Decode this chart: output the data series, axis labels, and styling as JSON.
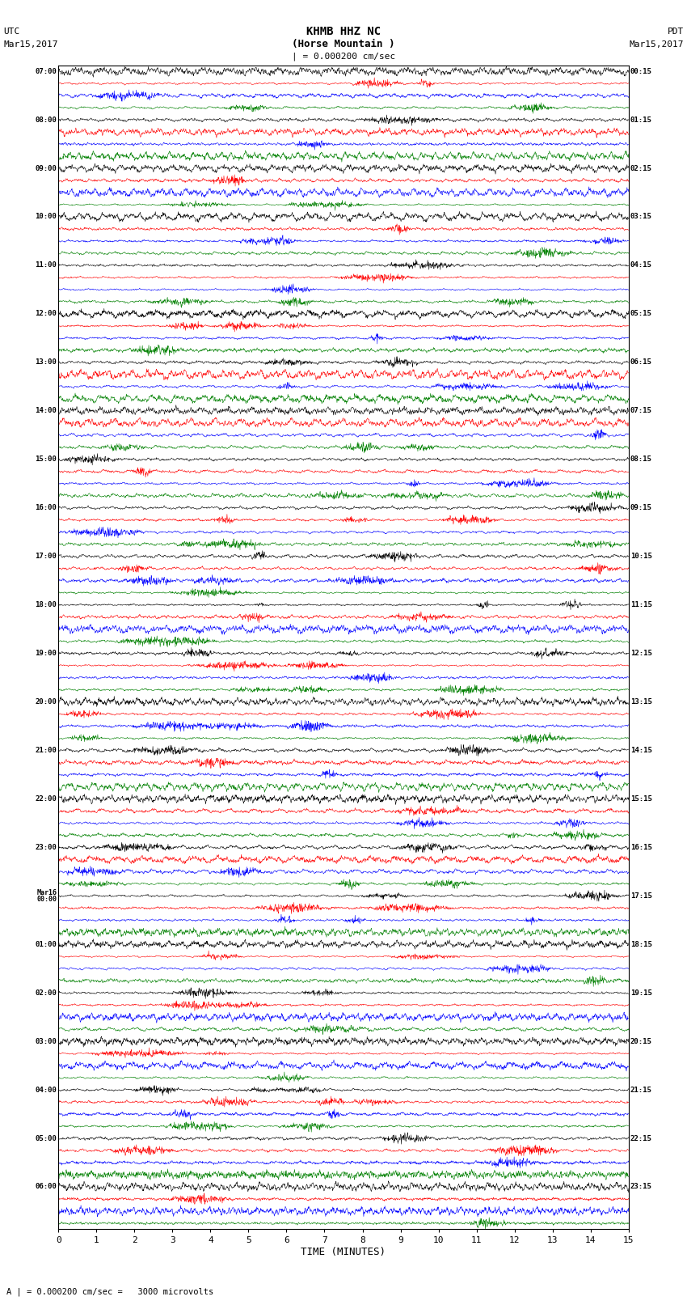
{
  "title_line1": "KHMB HHZ NC",
  "title_line2": "(Horse Mountain )",
  "scale_label": "| = 0.000200 cm/sec",
  "footer_label": "A | = 0.000200 cm/sec =   3000 microvolts",
  "xlabel": "TIME (MINUTES)",
  "left_times": [
    "07:00",
    "08:00",
    "09:00",
    "10:00",
    "11:00",
    "12:00",
    "13:00",
    "14:00",
    "15:00",
    "16:00",
    "17:00",
    "18:00",
    "19:00",
    "20:00",
    "21:00",
    "22:00",
    "23:00",
    "Mar16",
    "00:00",
    "01:00",
    "02:00",
    "03:00",
    "04:00",
    "05:00",
    "06:00"
  ],
  "right_times": [
    "00:15",
    "01:15",
    "02:15",
    "03:15",
    "04:15",
    "05:15",
    "06:15",
    "07:15",
    "08:15",
    "09:15",
    "10:15",
    "11:15",
    "12:15",
    "13:15",
    "14:15",
    "15:15",
    "16:15",
    "17:15",
    "18:15",
    "19:15",
    "20:15",
    "21:15",
    "22:15",
    "23:15"
  ],
  "trace_colors": [
    "black",
    "red",
    "blue",
    "green"
  ],
  "n_hours": 24,
  "traces_per_hour": 4,
  "x_min": 0,
  "x_max": 15,
  "x_ticks": [
    0,
    1,
    2,
    3,
    4,
    5,
    6,
    7,
    8,
    9,
    10,
    11,
    12,
    13,
    14,
    15
  ],
  "bg_color": "white",
  "seed": 42,
  "mar16_hour_idx": 17
}
